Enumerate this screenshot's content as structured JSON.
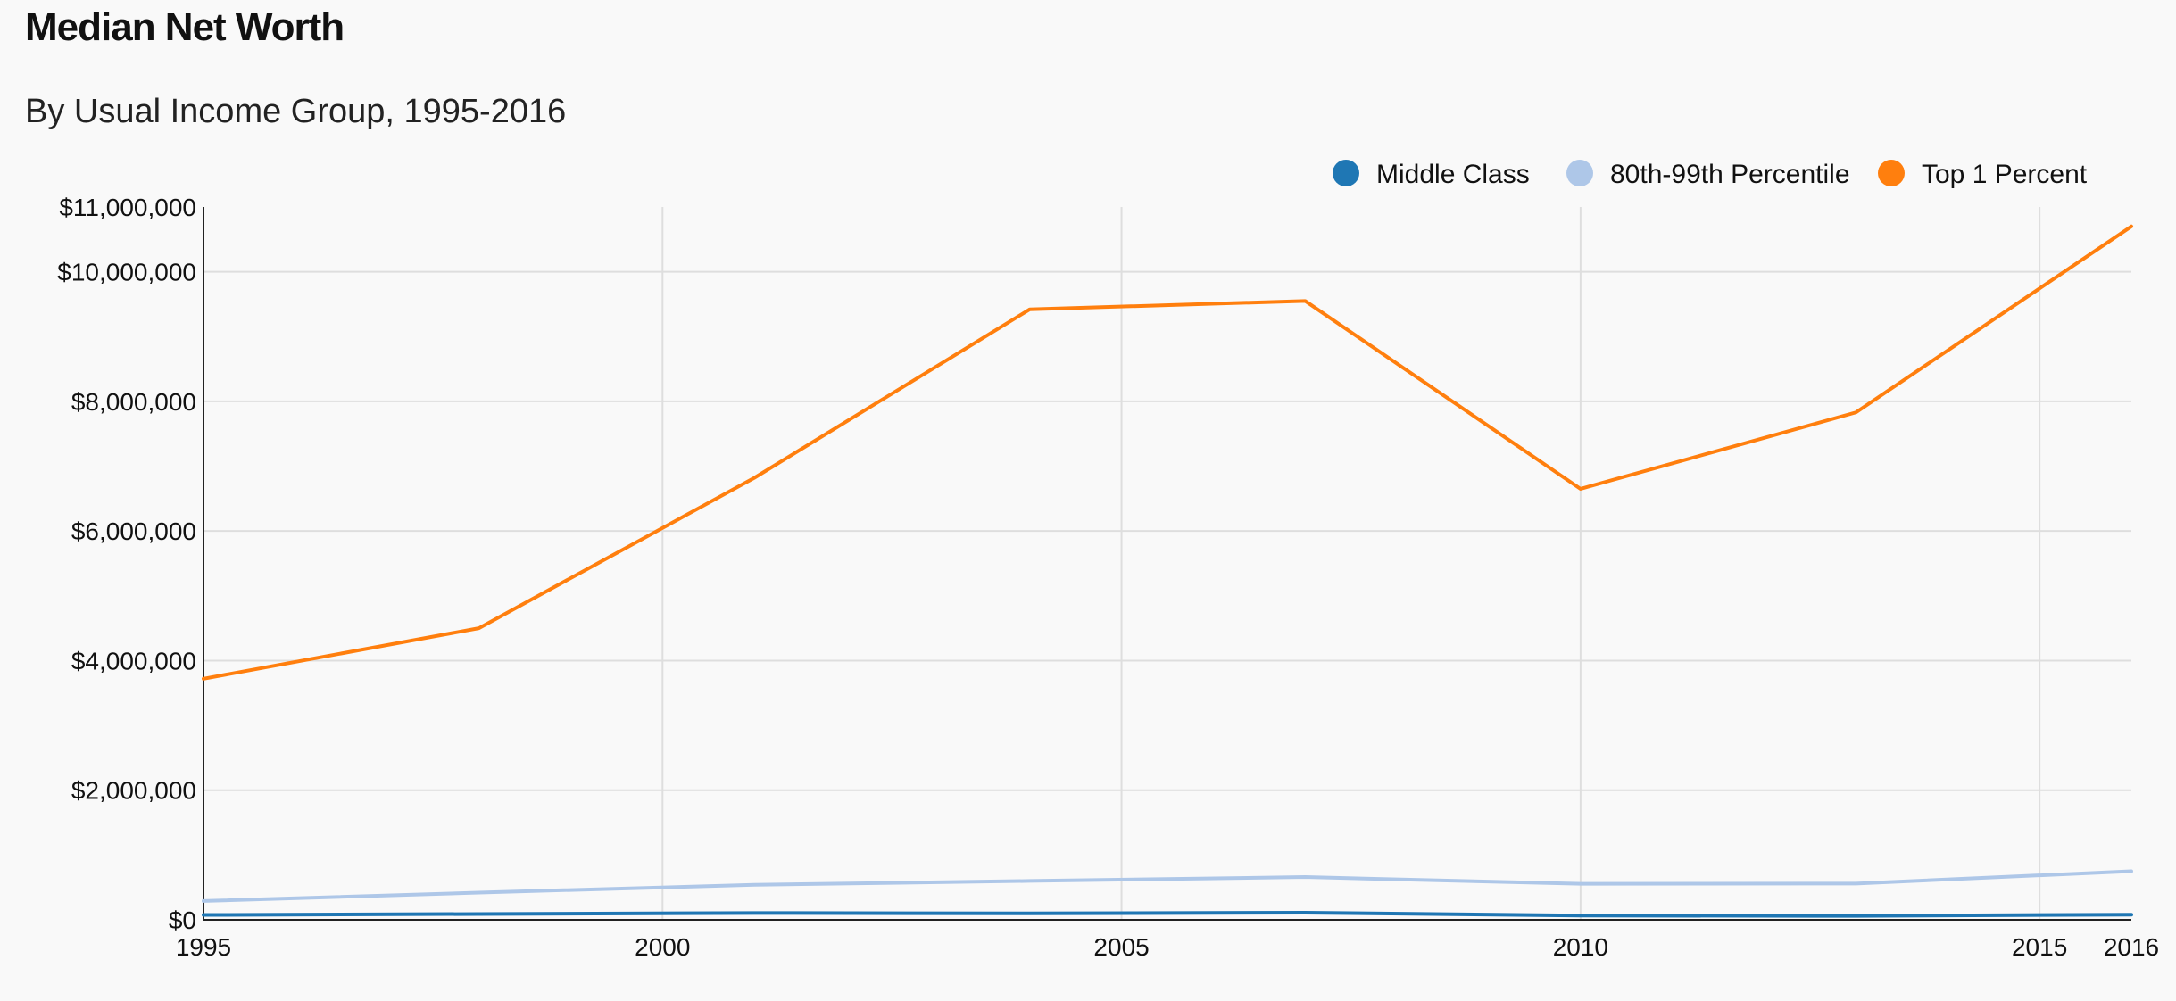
{
  "chart_data": {
    "type": "line",
    "title": "Median Net Worth",
    "subtitle": "By Usual Income Group, 1995-2016",
    "x": [
      1995,
      1998,
      2001,
      2004,
      2007,
      2010,
      2013,
      2016
    ],
    "series": [
      {
        "name": "Middle Class",
        "color": "#1f77b4",
        "values": [
          75000,
          90000,
          105000,
          100000,
          110000,
          65000,
          60000,
          80000
        ]
      },
      {
        "name": "80th-99th Percentile",
        "color": "#aec7e8",
        "values": [
          290000,
          420000,
          540000,
          600000,
          660000,
          555000,
          560000,
          750000
        ]
      },
      {
        "name": "Top 1 Percent",
        "color": "#ff7f0e",
        "values": [
          3720000,
          4500000,
          6820000,
          9420000,
          9550000,
          6650000,
          7830000,
          10700000
        ]
      }
    ],
    "xlim": [
      1995,
      2016
    ],
    "ylim": [
      0,
      11000000
    ],
    "x_ticks": [
      "1995",
      "2000",
      "2005",
      "2010",
      "2015",
      "2016"
    ],
    "x_tick_values": [
      1995,
      2000,
      2005,
      2010,
      2015,
      2016
    ],
    "y_ticks": [
      "$0",
      "$2,000,000",
      "$4,000,000",
      "$6,000,000",
      "$8,000,000",
      "$10,000,000",
      "$11,000,000"
    ],
    "y_tick_values": [
      0,
      2000000,
      4000000,
      6000000,
      8000000,
      10000000,
      11000000
    ],
    "grid": true,
    "legend_position": "top-right",
    "xlabel": "",
    "ylabel": ""
  }
}
